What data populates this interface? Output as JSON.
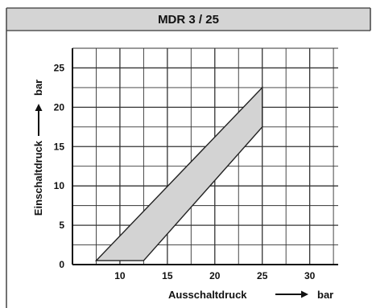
{
  "chart_data": {
    "type": "area",
    "title": "MDR 3 / 25",
    "xlabel": "Ausschaltdruck",
    "xunit": "bar",
    "ylabel": "Einschaltdruck",
    "yunit": "bar",
    "xlim": [
      5,
      33
    ],
    "ylim": [
      0,
      27.5
    ],
    "xticks": [
      10,
      15,
      20,
      25,
      30
    ],
    "xtick_labels": [
      "10",
      "15",
      "20",
      "25",
      "30"
    ],
    "yticks": [
      0,
      5,
      10,
      15,
      20,
      25
    ],
    "ytick_labels": [
      "0",
      "5",
      "10",
      "15",
      "20",
      "25"
    ],
    "grid": true,
    "region": {
      "points": [
        [
          7.5,
          0.5
        ],
        [
          12.5,
          0.5
        ],
        [
          25,
          17.5
        ],
        [
          25,
          22.5
        ]
      ],
      "fill": "#d3d3d3",
      "stroke": "#222222"
    }
  },
  "colors": {
    "header_bg": "#d4d4d4",
    "grid": "#333333",
    "frame": "#444444"
  }
}
